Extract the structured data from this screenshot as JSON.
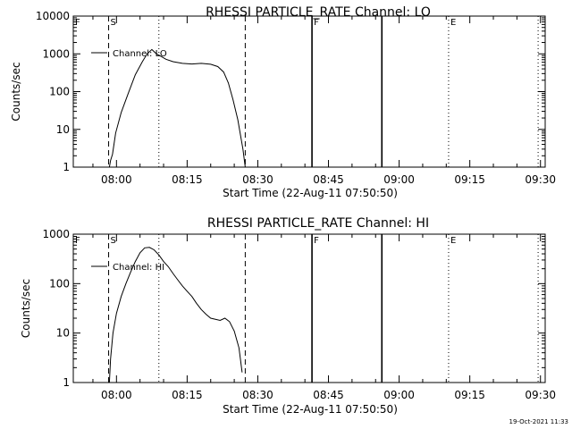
{
  "footer": {
    "timestamp": "19-Oct-2021 11:33"
  },
  "chart_data": [
    {
      "type": "line",
      "title": "RHESSI PARTICLE_RATE Channel: LO",
      "xlabel": "Start Time (22-Aug-11 07:50:50)",
      "ylabel": "Counts/sec",
      "y_scale": "log",
      "xlim": [
        "07:50:50",
        "09:31:00"
      ],
      "ylim": [
        1,
        10000
      ],
      "x_tick_labels": [
        "08:00",
        "08:15",
        "08:30",
        "08:45",
        "09:00",
        "09:15",
        "09:30"
      ],
      "y_tick_labels": [
        "1",
        "10",
        "100",
        "1000",
        "10000"
      ],
      "legend": {
        "position": "top-left"
      },
      "series": [
        {
          "name": "Channel: LO",
          "x": [
            "07:58:30",
            "07:58:45",
            "07:59:10",
            "07:59:50",
            "08:01:00",
            "08:02:30",
            "08:04:00",
            "08:05:30",
            "08:06:30",
            "08:07:30",
            "08:08:30",
            "08:09:30",
            "08:10:30",
            "08:12:00",
            "08:14:00",
            "08:16:00",
            "08:18:00",
            "08:20:00",
            "08:21:30",
            "08:22:45",
            "08:23:45",
            "08:24:45",
            "08:25:45",
            "08:26:50",
            "08:27:20"
          ],
          "y": [
            1,
            1.5,
            2.2,
            8,
            28,
            90,
            280,
            620,
            1000,
            1300,
            1000,
            850,
            720,
            620,
            560,
            540,
            560,
            530,
            460,
            330,
            170,
            60,
            18,
            3,
            1
          ]
        }
      ],
      "markers": [
        {
          "label": "F",
          "time": "07:50:50",
          "style": "dotted"
        },
        {
          "label": "S",
          "time": "07:58:20",
          "style": "dashed"
        },
        {
          "label": "",
          "time": "08:09:00",
          "style": "dotted"
        },
        {
          "label": "",
          "time": "08:27:20",
          "style": "dashed"
        },
        {
          "label": "F",
          "time": "08:41:30",
          "style": "solid"
        },
        {
          "label": "",
          "time": "08:56:20",
          "style": "solid"
        },
        {
          "label": "E",
          "time": "09:10:30",
          "style": "dotted"
        },
        {
          "label": "",
          "time": "09:29:30",
          "style": "dotted"
        }
      ]
    },
    {
      "type": "line",
      "title": "RHESSI PARTICLE_RATE Channel: HI",
      "xlabel": "Start Time (22-Aug-11 07:50:50)",
      "ylabel": "Counts/sec",
      "y_scale": "log",
      "xlim": [
        "07:50:50",
        "09:31:00"
      ],
      "ylim": [
        1,
        1000
      ],
      "x_tick_labels": [
        "08:00",
        "08:15",
        "08:30",
        "08:45",
        "09:00",
        "09:15",
        "09:30"
      ],
      "y_tick_labels": [
        "1",
        "10",
        "100",
        "1000"
      ],
      "legend": {
        "position": "top-left"
      },
      "series": [
        {
          "name": "Channel: HI",
          "x": [
            "07:58:30",
            "07:58:45",
            "07:59:15",
            "08:00:00",
            "08:01:00",
            "08:02:00",
            "08:03:00",
            "08:04:00",
            "08:05:00",
            "08:06:00",
            "08:07:00",
            "08:08:00",
            "08:09:00",
            "08:10:00",
            "08:11:00",
            "08:12:00",
            "08:13:00",
            "08:14:00",
            "08:15:00",
            "08:16:00",
            "08:17:00",
            "08:18:00",
            "08:19:00",
            "08:20:00",
            "08:21:00",
            "08:22:00",
            "08:23:00",
            "08:24:00",
            "08:25:00",
            "08:26:00",
            "08:26:40"
          ],
          "y": [
            1,
            3,
            10,
            25,
            55,
            100,
            170,
            280,
            420,
            530,
            540,
            480,
            380,
            280,
            220,
            160,
            120,
            90,
            70,
            55,
            40,
            30,
            24,
            20,
            19,
            18,
            20,
            17,
            11,
            5,
            1.6
          ]
        }
      ],
      "markers": [
        {
          "label": "F",
          "time": "07:50:50",
          "style": "dotted"
        },
        {
          "label": "S",
          "time": "07:58:20",
          "style": "dashed"
        },
        {
          "label": "",
          "time": "08:09:00",
          "style": "dotted"
        },
        {
          "label": "",
          "time": "08:27:20",
          "style": "dashed"
        },
        {
          "label": "F",
          "time": "08:41:30",
          "style": "solid"
        },
        {
          "label": "",
          "time": "08:56:20",
          "style": "solid"
        },
        {
          "label": "E",
          "time": "09:10:30",
          "style": "dotted"
        },
        {
          "label": "",
          "time": "09:29:30",
          "style": "dotted"
        }
      ]
    }
  ]
}
